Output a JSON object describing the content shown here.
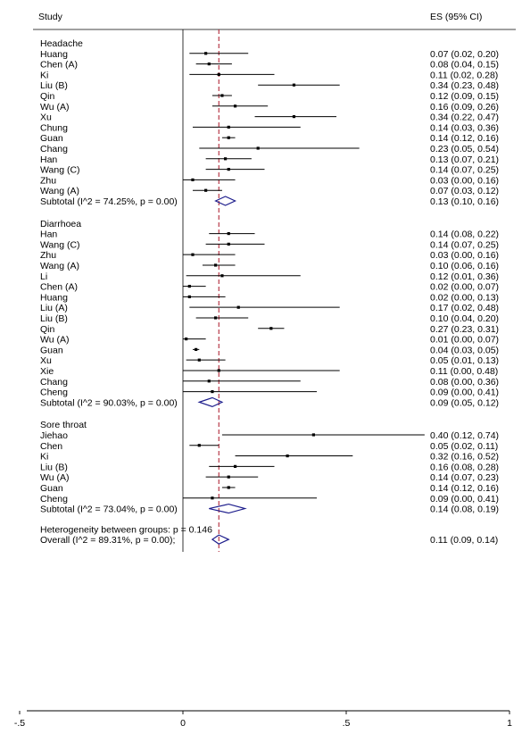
{
  "chart_data": {
    "type": "forest",
    "header": {
      "study": "Study",
      "es": "ES (95% CI)"
    },
    "x_axis": {
      "min": -0.5,
      "max": 1,
      "ticks": [
        -0.5,
        0,
        0.5,
        1
      ],
      "tick_labels": [
        "-.5",
        "0",
        ".5",
        "1"
      ]
    },
    "reference_line": 0.11,
    "groups": [
      {
        "name": "Headache",
        "studies": [
          {
            "label": "Huang",
            "es": 0.07,
            "lo": 0.02,
            "hi": 0.2,
            "text": "0.07 (0.02, 0.20)"
          },
          {
            "label": "Chen (A)",
            "es": 0.08,
            "lo": 0.04,
            "hi": 0.15,
            "text": "0.08 (0.04, 0.15)"
          },
          {
            "label": "Ki",
            "es": 0.11,
            "lo": 0.02,
            "hi": 0.28,
            "text": "0.11 (0.02, 0.28)"
          },
          {
            "label": "Liu (B)",
            "es": 0.34,
            "lo": 0.23,
            "hi": 0.48,
            "text": "0.34 (0.23, 0.48)"
          },
          {
            "label": "Qin",
            "es": 0.12,
            "lo": 0.09,
            "hi": 0.15,
            "text": "0.12 (0.09, 0.15)"
          },
          {
            "label": "Wu (A)",
            "es": 0.16,
            "lo": 0.09,
            "hi": 0.26,
            "text": "0.16 (0.09, 0.26)"
          },
          {
            "label": "Xu",
            "es": 0.34,
            "lo": 0.22,
            "hi": 0.47,
            "text": "0.34 (0.22, 0.47)"
          },
          {
            "label": "Chung",
            "es": 0.14,
            "lo": 0.03,
            "hi": 0.36,
            "text": "0.14 (0.03, 0.36)"
          },
          {
            "label": "Guan",
            "es": 0.14,
            "lo": 0.12,
            "hi": 0.16,
            "text": "0.14 (0.12, 0.16)"
          },
          {
            "label": "Chang",
            "es": 0.23,
            "lo": 0.05,
            "hi": 0.54,
            "text": "0.23 (0.05, 0.54)"
          },
          {
            "label": "Han",
            "es": 0.13,
            "lo": 0.07,
            "hi": 0.21,
            "text": "0.13 (0.07, 0.21)"
          },
          {
            "label": "Wang (C)",
            "es": 0.14,
            "lo": 0.07,
            "hi": 0.25,
            "text": "0.14 (0.07, 0.25)"
          },
          {
            "label": "Zhu",
            "es": 0.03,
            "lo": 0.0,
            "hi": 0.16,
            "text": "0.03 (0.00, 0.16)"
          },
          {
            "label": "Wang (A)",
            "es": 0.07,
            "lo": 0.03,
            "hi": 0.12,
            "text": "0.07 (0.03, 0.12)"
          }
        ],
        "subtotal": {
          "label": "Subtotal  (I^2 = 74.25%, p = 0.00)",
          "es": 0.13,
          "lo": 0.1,
          "hi": 0.16,
          "text": "0.13 (0.10, 0.16)"
        }
      },
      {
        "name": "Diarrhoea",
        "studies": [
          {
            "label": "Han",
            "es": 0.14,
            "lo": 0.08,
            "hi": 0.22,
            "text": "0.14 (0.08, 0.22)"
          },
          {
            "label": "Wang (C)",
            "es": 0.14,
            "lo": 0.07,
            "hi": 0.25,
            "text": "0.14 (0.07, 0.25)"
          },
          {
            "label": "Zhu",
            "es": 0.03,
            "lo": 0.0,
            "hi": 0.16,
            "text": "0.03 (0.00, 0.16)"
          },
          {
            "label": "Wang (A)",
            "es": 0.1,
            "lo": 0.06,
            "hi": 0.16,
            "text": "0.10 (0.06, 0.16)"
          },
          {
            "label": "Li",
            "es": 0.12,
            "lo": 0.01,
            "hi": 0.36,
            "text": "0.12 (0.01, 0.36)"
          },
          {
            "label": "Chen (A)",
            "es": 0.02,
            "lo": 0.0,
            "hi": 0.07,
            "text": "0.02 (0.00, 0.07)"
          },
          {
            "label": "Huang",
            "es": 0.02,
            "lo": 0.0,
            "hi": 0.13,
            "text": "0.02 (0.00, 0.13)"
          },
          {
            "label": "Liu (A)",
            "es": 0.17,
            "lo": 0.02,
            "hi": 0.48,
            "text": "0.17 (0.02, 0.48)"
          },
          {
            "label": "Liu (B)",
            "es": 0.1,
            "lo": 0.04,
            "hi": 0.2,
            "text": "0.10 (0.04, 0.20)"
          },
          {
            "label": "Qin",
            "es": 0.27,
            "lo": 0.23,
            "hi": 0.31,
            "text": "0.27 (0.23, 0.31)"
          },
          {
            "label": "Wu (A)",
            "es": 0.01,
            "lo": 0.0,
            "hi": 0.07,
            "text": "0.01 (0.00, 0.07)"
          },
          {
            "label": "Guan",
            "es": 0.04,
            "lo": 0.03,
            "hi": 0.05,
            "text": "0.04 (0.03, 0.05)"
          },
          {
            "label": "Xu",
            "es": 0.05,
            "lo": 0.01,
            "hi": 0.13,
            "text": "0.05 (0.01, 0.13)"
          },
          {
            "label": "Xie",
            "es": 0.11,
            "lo": 0.0,
            "hi": 0.48,
            "text": "0.11 (0.00, 0.48)"
          },
          {
            "label": "Chang",
            "es": 0.08,
            "lo": 0.0,
            "hi": 0.36,
            "text": "0.08 (0.00, 0.36)"
          },
          {
            "label": "Cheng",
            "es": 0.09,
            "lo": 0.0,
            "hi": 0.41,
            "text": "0.09 (0.00, 0.41)"
          }
        ],
        "subtotal": {
          "label": "Subtotal  (I^2 = 90.03%, p = 0.00)",
          "es": 0.09,
          "lo": 0.05,
          "hi": 0.12,
          "text": "0.09 (0.05, 0.12)"
        }
      },
      {
        "name": "Sore throat",
        "studies": [
          {
            "label": "Jiehao",
            "es": 0.4,
            "lo": 0.12,
            "hi": 0.74,
            "text": "0.40 (0.12, 0.74)"
          },
          {
            "label": "Chen",
            "es": 0.05,
            "lo": 0.02,
            "hi": 0.11,
            "text": "0.05 (0.02, 0.11)"
          },
          {
            "label": "Ki",
            "es": 0.32,
            "lo": 0.16,
            "hi": 0.52,
            "text": "0.32 (0.16, 0.52)"
          },
          {
            "label": "Liu (B)",
            "es": 0.16,
            "lo": 0.08,
            "hi": 0.28,
            "text": "0.16 (0.08, 0.28)"
          },
          {
            "label": "Wu (A)",
            "es": 0.14,
            "lo": 0.07,
            "hi": 0.23,
            "text": "0.14 (0.07, 0.23)"
          },
          {
            "label": "Guan",
            "es": 0.14,
            "lo": 0.12,
            "hi": 0.16,
            "text": "0.14 (0.12, 0.16)"
          },
          {
            "label": "Cheng",
            "es": 0.09,
            "lo": 0.0,
            "hi": 0.41,
            "text": "0.09 (0.00, 0.41)"
          }
        ],
        "subtotal": {
          "label": "Subtotal  (I^2 = 73.04%, p = 0.00)",
          "es": 0.14,
          "lo": 0.08,
          "hi": 0.19,
          "text": "0.14 (0.08, 0.19)"
        }
      }
    ],
    "heterogeneity": "Heterogeneity between groups: p = 0.146",
    "overall": {
      "label": "Overall  (I^2 = 89.31%, p = 0.00);",
      "es": 0.11,
      "lo": 0.09,
      "hi": 0.14,
      "text": "0.11 (0.09, 0.14)"
    },
    "colors": {
      "reference_line": "#b02838",
      "diamond": "#1d1d8c",
      "ink": "#000000"
    }
  }
}
